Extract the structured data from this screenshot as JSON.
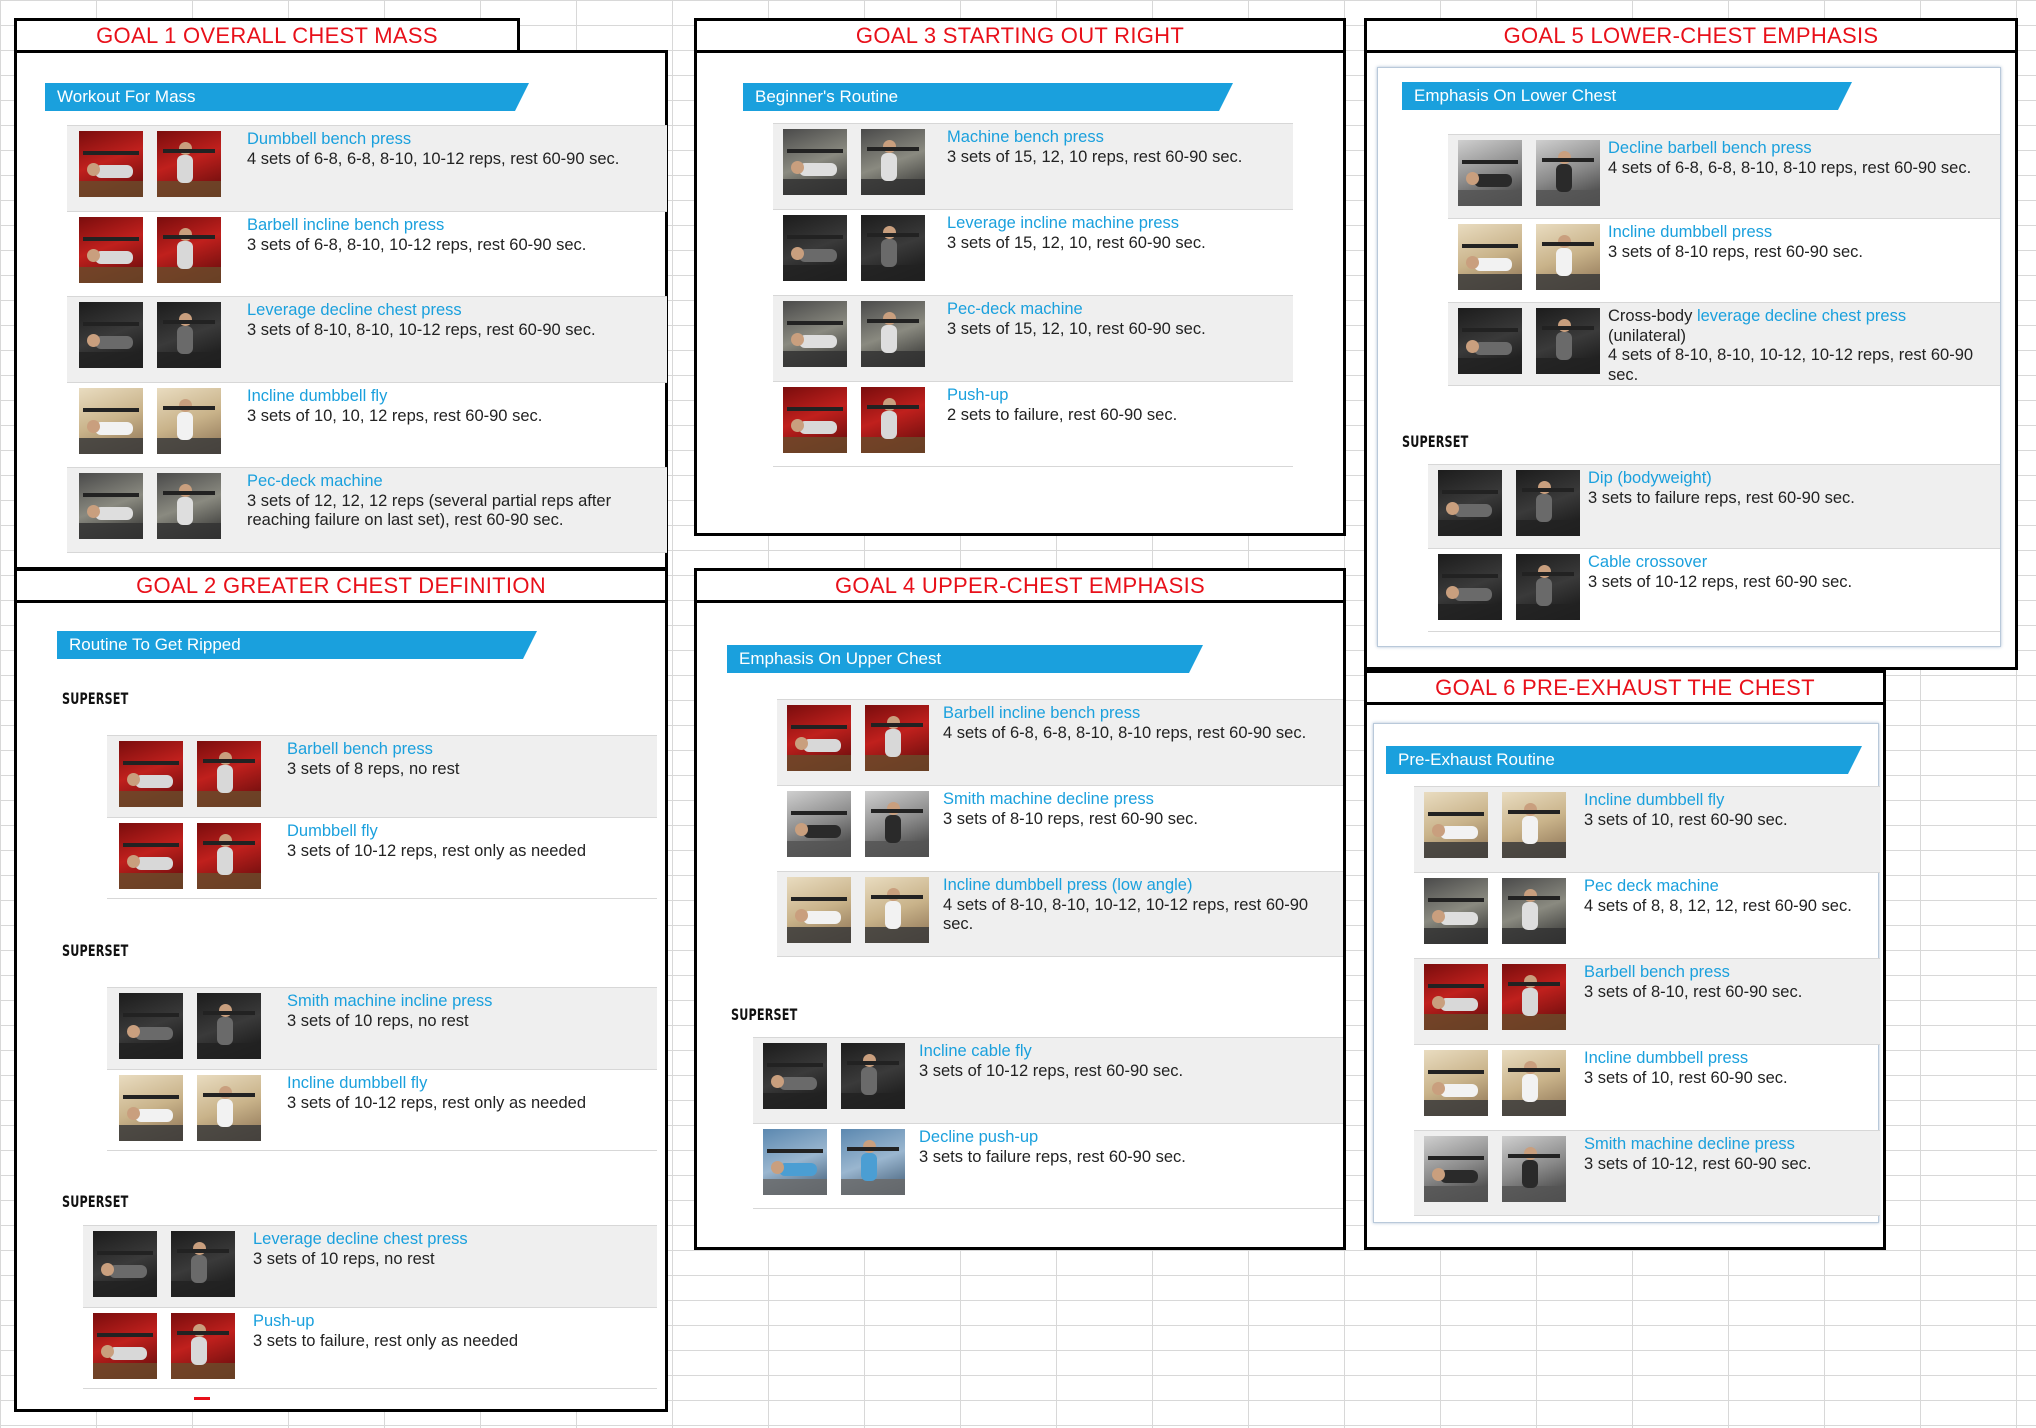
{
  "goals": [
    {
      "id": "goal1",
      "title": "GOAL 1 OVERALL CHEST MASS",
      "routine": "Workout For Mass",
      "blocks": [
        {
          "superset": "",
          "exercises": [
            {
              "name": "Dumbbell bench press",
              "detail": "4 sets of 6-8, 6-8, 8-10, 10-12 reps, rest 60-90 sec.",
              "theme": "red"
            },
            {
              "name": "Barbell incline bench press",
              "detail": "3 sets of 6-8, 8-10, 10-12 reps, rest 60-90 sec.",
              "theme": "red"
            },
            {
              "name": "Leverage decline chest press",
              "detail": "3 sets of 8-10, 8-10, 10-12 reps, rest 60-90 sec.",
              "theme": "dark"
            },
            {
              "name": "Incline dumbbell fly",
              "detail": "3 sets of 10, 10, 12 reps, rest 60-90 sec.",
              "theme": "tan"
            },
            {
              "name": "Pec-deck machine",
              "detail": "3 sets of 12, 12, 12 reps (several partial reps after reaching failure on last set), rest 60-90 sec.",
              "theme": "gym"
            }
          ]
        }
      ]
    },
    {
      "id": "goal2",
      "title": "GOAL 2 GREATER CHEST DEFINITION",
      "routine": "Routine To Get Ripped",
      "blocks": [
        {
          "superset": "SUPERSET",
          "exercises": [
            {
              "name": "Barbell bench press",
              "detail": "3 sets of 8 reps, no rest",
              "theme": "red"
            },
            {
              "name": "Dumbbell fly",
              "detail": "3 sets of 10-12 reps, rest only as needed",
              "theme": "red"
            }
          ]
        },
        {
          "superset": "SUPERSET",
          "exercises": [
            {
              "name": "Smith machine incline press",
              "detail": "3 sets of 10 reps, no rest",
              "theme": "dark"
            },
            {
              "name": "Incline dumbbell fly",
              "detail": "3 sets of 10-12 reps, rest only as needed",
              "theme": "tan"
            }
          ]
        },
        {
          "superset": "SUPERSET",
          "exercises": [
            {
              "name": "Leverage decline chest press",
              "detail": "3 sets of 10 reps, no rest",
              "theme": "dark"
            },
            {
              "name": "Push-up",
              "detail": "3 sets to failure, rest only as needed",
              "theme": "red"
            }
          ]
        }
      ]
    },
    {
      "id": "goal3",
      "title": "GOAL 3 STARTING OUT RIGHT",
      "routine": "Beginner's Routine",
      "blocks": [
        {
          "superset": "",
          "exercises": [
            {
              "name": "Machine bench press",
              "detail": "3 sets of 15, 12, 10 reps, rest 60-90 sec.",
              "theme": "gym"
            },
            {
              "name": "Leverage incline machine press",
              "detail": "3 sets of 15, 12, 10, rest 60-90 sec.",
              "theme": "dark"
            },
            {
              "name": "Pec-deck machine",
              "detail": "3 sets of 15, 12, 10, rest 60-90 sec.",
              "theme": "gym"
            },
            {
              "name": "Push-up",
              "detail": "2 sets to failure, rest 60-90 sec.",
              "theme": "red"
            }
          ]
        }
      ]
    },
    {
      "id": "goal4",
      "title": "GOAL 4 UPPER-CHEST EMPHASIS",
      "routine": "Emphasis On Upper Chest",
      "blocks": [
        {
          "superset": "",
          "exercises": [
            {
              "name": "Barbell incline bench press",
              "detail": "4 sets of 6-8, 6-8, 8-10, 8-10 reps, rest 60-90 sec.",
              "theme": "red"
            },
            {
              "name": "Smith machine decline press",
              "detail": "3 sets of 8-10 reps, rest 60-90 sec.",
              "theme": "grey"
            },
            {
              "name": "Incline dumbbell press (low angle)",
              "detail": "4 sets of 8-10, 8-10, 10-12, 10-12 reps, rest 60-90 sec.",
              "theme": "tan"
            }
          ]
        },
        {
          "superset": "SUPERSET",
          "exercises": [
            {
              "name": "Incline cable fly",
              "detail": "3 sets of 10-12 reps, rest 60-90 sec.",
              "theme": "dark"
            },
            {
              "name": "Decline push-up",
              "detail": "3 sets to failure reps, rest 60-90 sec.",
              "theme": "blue"
            }
          ]
        }
      ]
    },
    {
      "id": "goal5",
      "title": "GOAL 5 LOWER-CHEST EMPHASIS",
      "routine": "Emphasis On Lower Chest",
      "blocks": [
        {
          "superset": "",
          "exercises": [
            {
              "name": "Decline barbell bench press",
              "detail": "4 sets of 6-8, 6-8, 8-10, 8-10 reps, rest 60-90 sec.",
              "theme": "grey"
            },
            {
              "name": "Incline dumbbell press",
              "detail": "3 sets of 8-10 reps, rest 60-90 sec.",
              "theme": "tan"
            },
            {
              "prefix": "Cross-body ",
              "name": "leverage decline chest press",
              "suffix": " (unilateral)",
              "detail": "4 sets of 8-10, 8-10, 10-12, 10-12 reps, rest 60-90 sec.",
              "theme": "dark"
            }
          ]
        },
        {
          "superset": "SUPERSET",
          "exercises": [
            {
              "name": "Dip (bodyweight)",
              "detail": "3 sets to failure reps, rest 60-90 sec.",
              "theme": "dark"
            },
            {
              "name": "Cable crossover",
              "detail": "3 sets of 10-12 reps, rest 60-90 sec.",
              "theme": "dark"
            }
          ]
        }
      ]
    },
    {
      "id": "goal6",
      "title": "GOAL 6 PRE-EXHAUST THE CHEST",
      "routine": "Pre-Exhaust Routine",
      "blocks": [
        {
          "superset": "",
          "exercises": [
            {
              "name": "Incline dumbbell fly",
              "detail": "3 sets of 10, rest 60-90 sec.",
              "theme": "tan"
            },
            {
              "name": "Pec deck machine",
              "detail": "4 sets of 8, 8, 12, 12, rest 60-90 sec.",
              "theme": "gym"
            },
            {
              "name": "Barbell bench press",
              "detail": "3 sets of 8-10, rest 60-90 sec.",
              "theme": "red"
            },
            {
              "name": "Incline dumbbell press",
              "detail": "3 sets of 10, rest 60-90 sec.",
              "theme": "tan"
            },
            {
              "name": "Smith machine decline press",
              "detail": "3 sets of 10-12, rest 60-90 sec.",
              "theme": "grey"
            }
          ]
        }
      ]
    }
  ],
  "colors": {
    "title_red": "#e8101a",
    "accent_blue": "#1aa0dd",
    "row_alt": "#efefef"
  }
}
